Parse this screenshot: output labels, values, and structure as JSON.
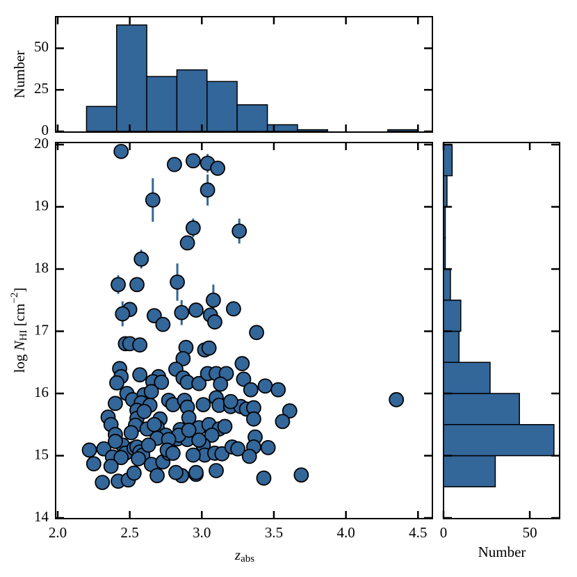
{
  "chart_data": [
    {
      "type": "scatter",
      "xlabel": {
        "main": "z",
        "sub": "abs"
      },
      "ylabel": {
        "pre": "log ",
        "main": "N",
        "sub": "HI",
        "post": " [cm",
        "sup": "−2",
        "end": "]"
      },
      "color": "#336699",
      "xlim": [
        2.0,
        4.6
      ],
      "xticks": [
        {
          "value": 2,
          "label": "2.0"
        },
        2.5,
        {
          "value": 3,
          "label": "3.0"
        },
        3.5,
        {
          "value": 4,
          "label": "4.0"
        },
        4.5
      ],
      "ylim": [
        14,
        20
      ],
      "yticks": [
        14,
        15,
        16,
        17,
        18,
        19,
        20
      ],
      "x": [
        2.44,
        2.81,
        2.94,
        3.04,
        3.11,
        2.66,
        3.04,
        2.94,
        2.9,
        3.26,
        2.58,
        2.42,
        2.55,
        2.83,
        3.08,
        2.5,
        2.45,
        2.86,
        2.67,
        2.73,
        2.96,
        3.06,
        3.09,
        3.22,
        3.38,
        2.47,
        2.5,
        2.57,
        2.89,
        3.02,
        3.05,
        2.87,
        3.28,
        2.43,
        2.44,
        2.41,
        2.57,
        2.7,
        2.66,
        2.72,
        2.82,
        2.87,
        2.9,
        2.98,
        3.04,
        3.1,
        3.17,
        3.13,
        3.29,
        2.48,
        2.52,
        2.6,
        2.58,
        2.64,
        2.4,
        2.35,
        2.37,
        2.4,
        2.55,
        2.55,
        2.54,
        2.51,
        2.77,
        2.8,
        2.88,
        2.9,
        2.91,
        3.01,
        3.1,
        3.12,
        3.2,
        3.34,
        3.44,
        3.53,
        3.27,
        3.31,
        3.36,
        3.36,
        3.2,
        3.61,
        3.56,
        4.35,
        2.71,
        2.69,
        2.75,
        2.69,
        2.85,
        2.83,
        2.9,
        2.98,
        3.05,
        3.12,
        3.16,
        3.07,
        3.37,
        3.36,
        3.46,
        2.22,
        2.32,
        2.25,
        2.31,
        2.38,
        2.45,
        2.47,
        2.53,
        2.55,
        2.57,
        2.59,
        2.56,
        2.63,
        2.65,
        2.69,
        2.73,
        2.77,
        2.84,
        2.86,
        2.82,
        2.96,
        2.96,
        3.01,
        3.02,
        3.1,
        3.09,
        3.14,
        3.21,
        3.25,
        3.33,
        3.43,
        3.69,
        2.42,
        2.49,
        2.53,
        2.62,
        2.67,
        2.77,
        2.76,
        2.8,
        2.4,
        2.44,
        2.37,
        2.94,
        2.98,
        2.91,
        2.65,
        2.6
      ],
      "values": [
        19.89,
        19.68,
        19.74,
        19.7,
        19.62,
        19.11,
        19.27,
        18.66,
        18.42,
        18.61,
        18.16,
        17.75,
        17.75,
        17.79,
        17.5,
        17.35,
        17.28,
        17.3,
        17.25,
        17.11,
        17.34,
        17.26,
        17.15,
        17.36,
        16.98,
        16.8,
        16.8,
        16.78,
        16.74,
        16.7,
        16.73,
        16.56,
        16.48,
        16.4,
        16.27,
        16.17,
        16.3,
        16.27,
        16.19,
        16.18,
        16.39,
        16.25,
        16.18,
        16.16,
        16.32,
        16.32,
        16.32,
        16.15,
        16.23,
        16.0,
        15.9,
        15.98,
        15.85,
        15.81,
        15.84,
        15.62,
        15.5,
        15.34,
        15.73,
        15.6,
        15.49,
        15.37,
        15.89,
        15.82,
        15.89,
        15.78,
        15.61,
        15.82,
        15.93,
        15.81,
        15.79,
        16.06,
        16.12,
        16.06,
        15.79,
        15.75,
        15.77,
        15.59,
        15.87,
        15.72,
        15.55,
        15.9,
        15.59,
        15.46,
        15.33,
        15.28,
        15.42,
        15.27,
        15.26,
        15.45,
        15.5,
        15.43,
        15.47,
        15.33,
        15.3,
        15.14,
        15.13,
        15.09,
        15.11,
        14.87,
        14.57,
        14.98,
        15.17,
        15.04,
        15.12,
        15.14,
        15.06,
        15.01,
        14.95,
        15.17,
        14.86,
        14.68,
        14.9,
        15.04,
        15.33,
        14.68,
        14.73,
        14.7,
        14.73,
        15.17,
        15.01,
        14.76,
        15.04,
        15.03,
        15.14,
        15.11,
        14.99,
        14.64,
        14.69,
        14.59,
        14.61,
        14.72,
        15.43,
        15.5,
        15.26,
        15.09,
        15.04,
        15.23,
        14.97,
        14.83,
        15.01,
        15.25,
        15.41,
        16.03,
        15.71
      ],
      "yerr": [
        null,
        null,
        null,
        0.15,
        null,
        0.35,
        0.25,
        0.15,
        null,
        0.2,
        0.15,
        0.15,
        null,
        0.3,
        0.25,
        null,
        0.2,
        0.2,
        null,
        null,
        null,
        null,
        null,
        null,
        null,
        null,
        null,
        null,
        null,
        null,
        null,
        null,
        null,
        null,
        null,
        null,
        null,
        null,
        null,
        null,
        null,
        null,
        null,
        null,
        null,
        null,
        null,
        null,
        null,
        null,
        null,
        null,
        null,
        null,
        null,
        null,
        null,
        null,
        null,
        null,
        null,
        null,
        null,
        null,
        null,
        null,
        null,
        null,
        null,
        null,
        null,
        null,
        null,
        null,
        null,
        null,
        null,
        null,
        null,
        null,
        null,
        null,
        null,
        null,
        null,
        null,
        null,
        null,
        null,
        null,
        null,
        null,
        null,
        null,
        null,
        null,
        null,
        null,
        null,
        null,
        null,
        null,
        null,
        null,
        null,
        null,
        null,
        null,
        null,
        null,
        null,
        null,
        null,
        null,
        null,
        null,
        null,
        null,
        null,
        null,
        null,
        null,
        null,
        null,
        null,
        null,
        null,
        null,
        null,
        null,
        null,
        null,
        null,
        null,
        null,
        null,
        null,
        null,
        null,
        null,
        null,
        null,
        null,
        null,
        null
      ]
    },
    {
      "type": "histogram",
      "orientation": "vertical",
      "ylabel": "Number",
      "color": "#336699",
      "bins": [
        2.2,
        2.409,
        2.618,
        2.827,
        3.036,
        3.245,
        3.455,
        3.664,
        3.873,
        4.082,
        4.291,
        4.5
      ],
      "counts": [
        15,
        64,
        33,
        37,
        30,
        16,
        4,
        1,
        0,
        0,
        1
      ],
      "ylim": [
        0,
        69
      ],
      "yticks": [
        0,
        25,
        50
      ]
    },
    {
      "type": "histogram",
      "orientation": "horizontal",
      "xlabel": "Number",
      "color": "#336699",
      "bins": [
        14.5,
        15,
        15.5,
        16,
        16.5,
        17,
        17.5,
        18,
        18.5,
        19,
        19.5,
        20
      ],
      "counts": [
        30,
        64,
        44,
        27,
        9,
        10,
        4,
        1,
        1,
        2,
        5
      ],
      "xlim": [
        0,
        67.3
      ],
      "xticks": [
        0,
        50
      ]
    }
  ]
}
